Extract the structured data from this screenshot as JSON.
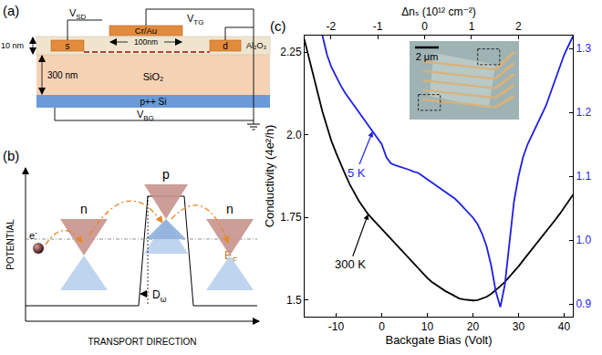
{
  "panel_a": {
    "label": "(a)",
    "gate": {
      "material": "Cr/Au",
      "width": "100nm"
    },
    "source_drain_voltage": {
      "base": "V",
      "sub": "SD"
    },
    "top_gate_voltage": {
      "base": "V",
      "sub": "TG"
    },
    "backgate_voltage": {
      "base": "V",
      "sub": "BG"
    },
    "source": "s",
    "drain": "d",
    "layers": [
      {
        "name": "Al₂O₃",
        "thickness": "10 nm"
      },
      {
        "name": "SiO₂",
        "thickness": "300 nm"
      },
      {
        "name": "p++ Si"
      }
    ]
  },
  "panel_b": {
    "label": "(b)",
    "y_label": "POTENTIAL",
    "x_label": "TRANSPORT DIRECTION",
    "regions": [
      "n",
      "p",
      "n"
    ],
    "fermi_level": {
      "base": "E",
      "sub": "F"
    },
    "barrier_width": {
      "base": "D",
      "sub": "ω"
    },
    "electron": {
      "base": "e",
      "sup": "-"
    }
  },
  "inset": {
    "scale_bar": "2 μm"
  },
  "chart_data": {
    "type": "line",
    "panel_label": "(c)",
    "x_label": "Backgate Bias (Volt)",
    "y_label": "Conductivity (4e²/h)",
    "x2_label": "Δnₛ (10¹² cm⁻²)",
    "grid": false,
    "xlim": [
      -16.9,
      41.9
    ],
    "xticks": [
      -10,
      0,
      10,
      20,
      30,
      40
    ],
    "x2lim": [
      -2.56,
      3.16
    ],
    "x2ticks": [
      -2,
      -1,
      0,
      1,
      2
    ],
    "ylim": [
      1.45,
      2.3
    ],
    "yticks": [
      1.5,
      1.75,
      {
        "value": 2,
        "label": "2.0"
      },
      2.25
    ],
    "y2lim": [
      0.88,
      1.32
    ],
    "y2ticks": [
      0.9,
      {
        "value": 1,
        "label": "1.0"
      },
      1.1,
      1.2,
      1.3
    ],
    "x": [
      -17,
      -16,
      -15,
      -14,
      -13,
      -12,
      -11,
      -10,
      -9,
      -8,
      -7,
      -6,
      -5,
      -4,
      -3,
      -2,
      -1,
      0,
      1,
      2,
      3,
      4,
      5,
      6,
      7,
      8,
      9,
      10,
      11,
      12,
      13,
      14,
      15,
      16,
      17,
      18,
      19,
      20,
      21,
      22,
      23,
      24,
      25,
      26,
      27,
      28,
      29,
      30,
      31,
      32,
      33,
      34,
      35,
      36,
      37,
      38,
      39,
      40,
      41,
      42
    ],
    "series": [
      {
        "name": "300 K",
        "color": "#000000",
        "values": [
          2.29,
          2.235,
          2.18,
          2.125,
          2.07,
          2.025,
          1.98,
          1.945,
          1.91,
          1.88,
          1.85,
          1.825,
          1.8,
          1.78,
          1.76,
          1.745,
          1.73,
          1.715,
          1.7,
          1.685,
          1.67,
          1.655,
          1.64,
          1.625,
          1.61,
          1.595,
          1.58,
          1.567,
          1.555,
          1.545,
          1.535,
          1.527,
          1.52,
          1.512,
          1.505,
          1.502,
          1.5,
          1.499,
          1.5,
          1.504,
          1.51,
          1.519,
          1.53,
          1.542,
          1.555,
          1.57,
          1.585,
          1.602,
          1.62,
          1.637,
          1.655,
          1.672,
          1.69,
          1.707,
          1.725,
          1.742,
          1.76,
          1.78,
          1.8,
          1.82
        ]
      },
      {
        "name": "5 K",
        "color": "#1f1fe6",
        "axis": "y2",
        "values": [
          null,
          null,
          null,
          null,
          1.32,
          1.29,
          1.27,
          1.255,
          1.242,
          1.23,
          1.22,
          1.21,
          1.2,
          1.19,
          1.18,
          1.17,
          1.16,
          1.15,
          1.13,
          1.12,
          1.117,
          1.115,
          1.112,
          1.11,
          1.107,
          1.105,
          1.1,
          1.095,
          1.09,
          1.085,
          1.08,
          1.075,
          1.07,
          1.065,
          1.058,
          1.05,
          1.043,
          1.035,
          1.025,
          1.01,
          0.99,
          0.96,
          0.92,
          0.895,
          0.93,
          1.0,
          1.06,
          1.1,
          1.13,
          1.15,
          1.165,
          1.18,
          1.195,
          1.21,
          1.23,
          1.25,
          1.27,
          1.29,
          1.305,
          1.32
        ]
      }
    ]
  }
}
